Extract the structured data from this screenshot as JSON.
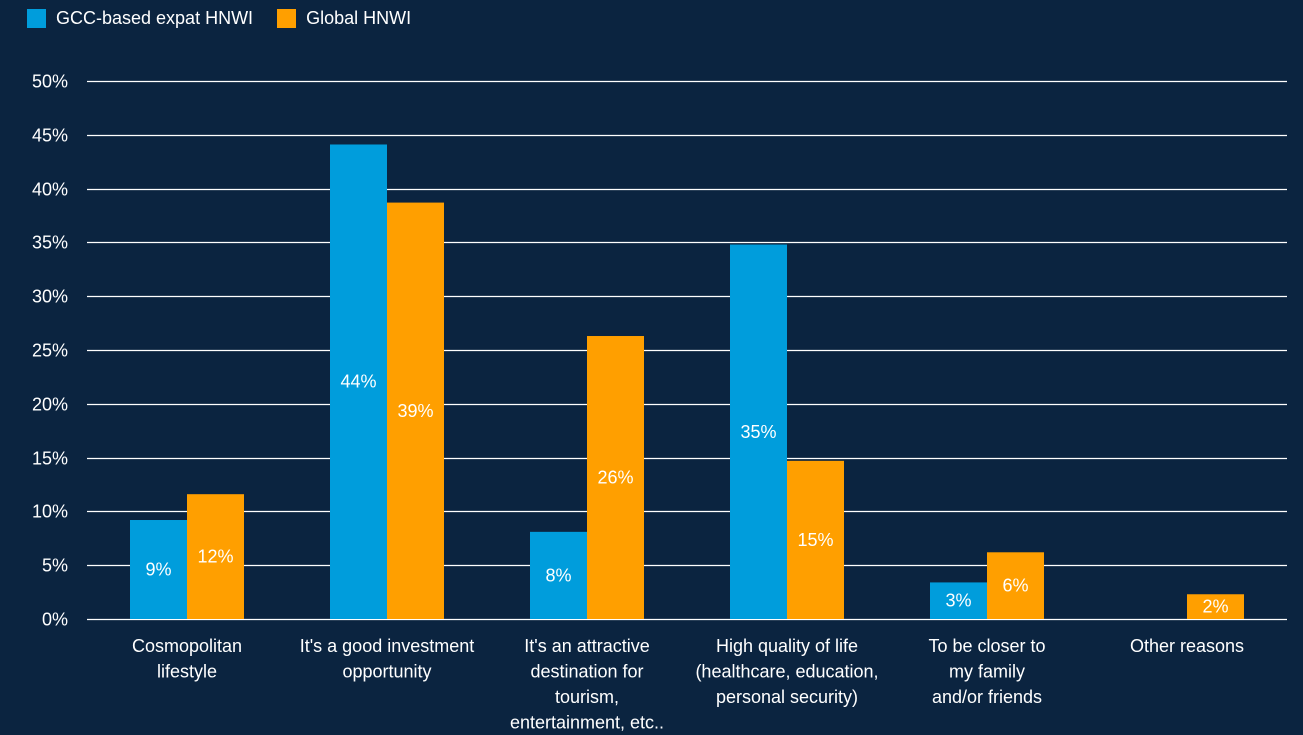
{
  "legend": {
    "series_1_label": "GCC-based expat HNWI",
    "series_2_label": "Global HNWI"
  },
  "colors": {
    "background": "#0b2440",
    "series_1": "#009ddc",
    "series_2": "#ff9f00",
    "grid": "#ffffff",
    "text": "#ffffff"
  },
  "chart_data": {
    "type": "bar",
    "title": "",
    "xlabel": "",
    "ylabel": "",
    "ylim": [
      0,
      50
    ],
    "y_ticks": [
      0,
      5,
      10,
      15,
      20,
      25,
      30,
      35,
      40,
      45,
      50
    ],
    "y_tick_labels": [
      "0%",
      "5%",
      "10%",
      "15%",
      "20%",
      "25%",
      "30%",
      "35%",
      "40%",
      "45%",
      "50%"
    ],
    "grid": true,
    "legend_position": "top-left",
    "categories": [
      [
        "Cosmopolitan",
        "lifestyle"
      ],
      [
        "It's a good investment",
        "opportunity"
      ],
      [
        "It's an attractive",
        "destination for",
        "tourism,",
        "entertainment, etc.."
      ],
      [
        "High quality of life",
        "(healthcare, education,",
        "personal security)"
      ],
      [
        "To be closer to",
        "my family",
        "and/or friends"
      ],
      [
        "Other reasons"
      ]
    ],
    "series": [
      {
        "name": "GCC-based expat HNWI",
        "values": [
          9.2,
          44.1,
          8.1,
          34.8,
          3.4,
          null
        ],
        "labels": [
          "9%",
          "44%",
          "8%",
          "35%",
          "3%",
          ""
        ]
      },
      {
        "name": "Global HNWI",
        "values": [
          11.6,
          38.7,
          26.3,
          14.7,
          6.2,
          2.3
        ],
        "labels": [
          "12%",
          "39%",
          "26%",
          "15%",
          "6%",
          "2%"
        ]
      }
    ]
  }
}
